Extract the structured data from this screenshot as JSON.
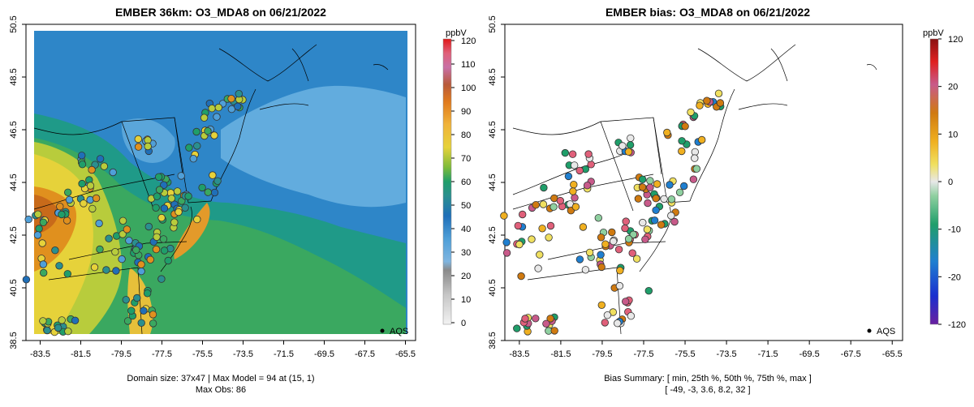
{
  "chart_data": [
    {
      "type": "heatmap",
      "title": "EMBER 36km: O3_MDA8 on 06/21/2022",
      "x_ticks": [
        "-83.5",
        "-81.5",
        "-79.5",
        "-77.5",
        "-75.5",
        "-73.5",
        "-71.5",
        "-69.5",
        "-67.5",
        "-65.5"
      ],
      "y_ticks": [
        "38.5",
        "40.5",
        "42.5",
        "44.5",
        "46.5",
        "48.5",
        "50.5"
      ],
      "xlim": [
        -84.2,
        -65.0
      ],
      "ylim": [
        38.5,
        50.5
      ],
      "colorbar": {
        "unit": "ppbV",
        "ticks": [
          "0",
          "10",
          "20",
          "30",
          "40",
          "50",
          "60",
          "70",
          "80",
          "90",
          "100",
          "110",
          "120"
        ],
        "range": [
          0,
          120
        ]
      },
      "legend_label": "AQS",
      "footer_line1": "Domain size: 37x47 | Max Model = 94 at (15, 1)",
      "footer_line2": "Max Obs: 86"
    },
    {
      "type": "scatter",
      "title": "EMBER bias: O3_MDA8 on 06/21/2022",
      "x_ticks": [
        "-83.5",
        "-81.5",
        "-79.5",
        "-77.5",
        "-75.5",
        "-73.5",
        "-71.5",
        "-69.5",
        "-67.5",
        "-65.5"
      ],
      "y_ticks": [
        "38.5",
        "40.5",
        "42.5",
        "44.5",
        "46.5",
        "48.5",
        "50.5"
      ],
      "xlim": [
        -84.2,
        -65.0
      ],
      "ylim": [
        38.5,
        50.5
      ],
      "colorbar": {
        "unit": "ppbV",
        "ticks": [
          "120",
          "20",
          "10",
          "0",
          "-10",
          "-20",
          "-120"
        ]
      },
      "legend_label": "AQS",
      "footer_line1": "Bias Summary: [ min, 25th %, 50th %, 75th %, max ]",
      "footer_line2": "[ -49,   -3,   3.6,   8.2,   32 ]"
    }
  ]
}
